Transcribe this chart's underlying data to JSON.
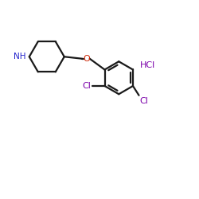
{
  "background_color": "#ffffff",
  "bond_color": "#1a1a1a",
  "NH_color": "#2222cc",
  "O_color": "#cc2200",
  "Cl_color": "#7b00aa",
  "HCl_color": "#7b00aa",
  "figsize": [
    2.5,
    2.5
  ],
  "dpi": 100,
  "xlim": [
    0,
    10
  ],
  "ylim": [
    0,
    10
  ]
}
